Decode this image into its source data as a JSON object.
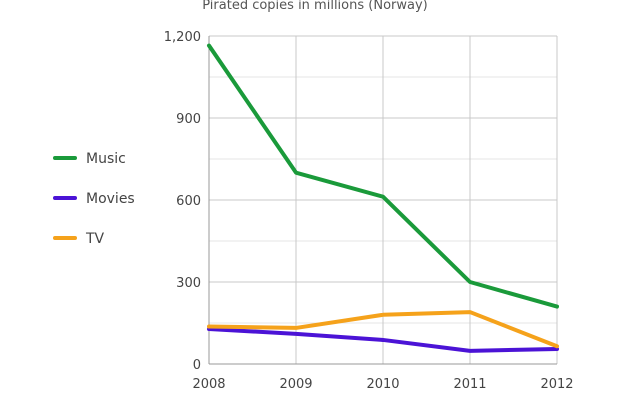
{
  "chart_data": {
    "type": "line",
    "title": "Pirated copies in millions (Norway)",
    "xlabel": "",
    "ylabel": "",
    "categories": [
      "2008",
      "2009",
      "2010",
      "2011",
      "2012"
    ],
    "ylim": [
      0,
      1200
    ],
    "yticks": [
      0,
      300,
      600,
      900,
      1200
    ],
    "ytick_labels": [
      "0",
      "300",
      "600",
      "900",
      "1,200"
    ],
    "grid": true,
    "legend_position": "left",
    "series": [
      {
        "name": "Music",
        "color": "#1a9a3a",
        "values": [
          1165,
          700,
          612,
          300,
          210
        ]
      },
      {
        "name": "Movies",
        "color": "#4b13d6",
        "values": [
          128,
          110,
          88,
          48,
          55
        ]
      },
      {
        "name": "TV",
        "color": "#f5a21b",
        "values": [
          137,
          132,
          180,
          190,
          65
        ]
      }
    ]
  }
}
